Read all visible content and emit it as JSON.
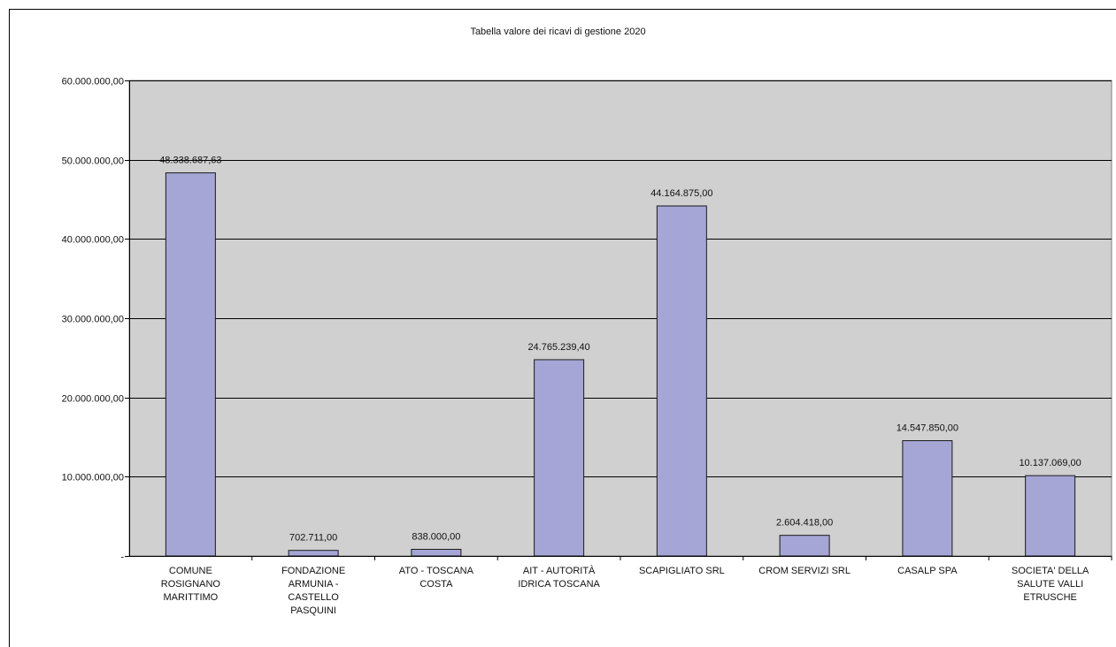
{
  "chart_data": {
    "type": "bar",
    "title": "Tabella valore dei ricavi di gestione 2020",
    "xlabel": "",
    "ylabel": "",
    "ylim": [
      0,
      60000000
    ],
    "grid": true,
    "legend": "none",
    "y_ticks": [
      {
        "value": 0,
        "label": "-"
      },
      {
        "value": 10000000,
        "label": "10.000.000,00"
      },
      {
        "value": 20000000,
        "label": "20.000.000,00"
      },
      {
        "value": 30000000,
        "label": "30.000.000,00"
      },
      {
        "value": 40000000,
        "label": "40.000.000,00"
      },
      {
        "value": 50000000,
        "label": "50.000.000,00"
      },
      {
        "value": 60000000,
        "label": "60.000.000,00"
      }
    ],
    "categories": [
      [
        "COMUNE",
        "ROSIGNANO",
        "MARITTIMO"
      ],
      [
        "FONDAZIONE",
        "ARMUNIA -",
        "CASTELLO",
        "PASQUINI"
      ],
      [
        "ATO - TOSCANA",
        "COSTA"
      ],
      [
        "AIT - AUTORITÀ",
        "IDRICA TOSCANA"
      ],
      [
        "SCAPIGLIATO SRL"
      ],
      [
        "CROM SERVIZI SRL"
      ],
      [
        "CASALP SPA"
      ],
      [
        "SOCIETA' DELLA",
        "SALUTE VALLI",
        "ETRUSCHE"
      ]
    ],
    "values": [
      48338687.63,
      702711.0,
      838000.0,
      24765239.4,
      44164875.0,
      2604418.0,
      14547850.0,
      10137069.0
    ],
    "data_labels": [
      "48.338.687,63",
      "702.711,00",
      "838.000,00",
      "24.765.239,40",
      "44.164.875,00",
      "2.604.418,00",
      "14.547.850,00",
      "10.137.069,00"
    ],
    "colors": {
      "bar": "#a5a5d6",
      "bar_stroke": "#1a1a1a",
      "plot_bg": "#d0d0d0",
      "grid": "#000000"
    }
  }
}
